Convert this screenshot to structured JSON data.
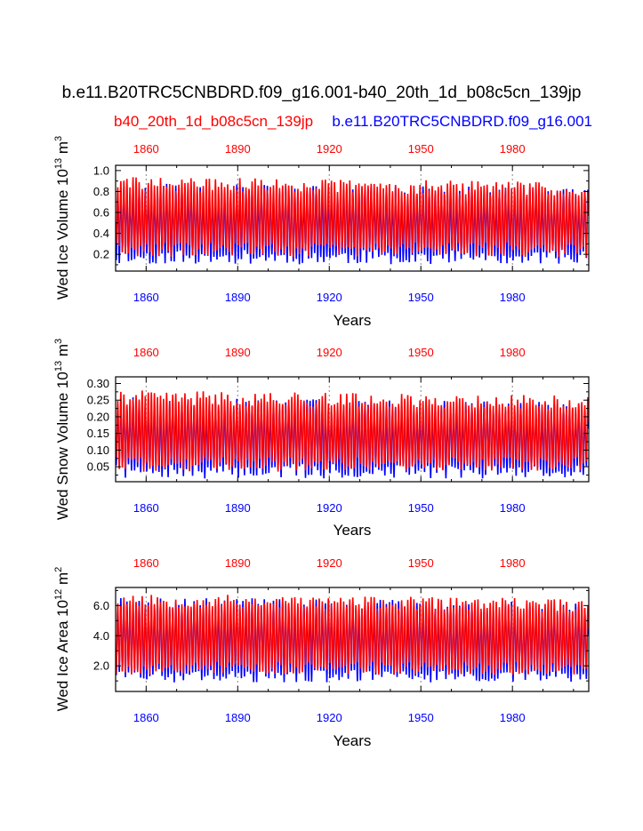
{
  "title": "b.e11.B20TRC5CNBDRD.f09_g16.001-b40_20th_1d_b08c5cn_139jp",
  "legend": {
    "red_case": "b40_20th_1d_b08c5cn_139jp",
    "blue_case": "b.e11.B20TRC5CNBDRD.f09_g16.001"
  },
  "colors": {
    "red": "#ff0000",
    "blue": "#0000ff",
    "grid": "#888888",
    "axis": "#000000"
  },
  "chart_data": [
    {
      "type": "line",
      "ylabel": "Wed Ice Volume 10",
      "ylabel_exp": "13",
      "ylabel_unit": " m",
      "ylabel_unit_exp": "3",
      "xlabel": "Years",
      "xlim": [
        1850,
        2005
      ],
      "ylim": [
        0.04,
        1.05
      ],
      "yticks": [
        0.2,
        0.4,
        0.6,
        0.8,
        1.0
      ],
      "ytick_labels": [
        "0.2",
        "0.4",
        "0.6",
        "0.8",
        "1.0"
      ],
      "ytick_minor": [
        0.1,
        0.3,
        0.5,
        0.7,
        0.9
      ],
      "xticks": [
        1860,
        1890,
        1920,
        1950,
        1980
      ],
      "xtick_labels": [
        "1860",
        "1890",
        "1920",
        "1950",
        "1980"
      ],
      "series": [
        {
          "name": "b.e11.B20TRC5CNBDRD.f09_g16.001",
          "color": "blue",
          "min_mean": 0.17,
          "max_mean": 0.82,
          "spread": 0.07,
          "seed": 11
        },
        {
          "name": "b40_20th_1d_b08c5cn_139jp",
          "color": "red",
          "min_mean": 0.24,
          "max_mean": 0.88,
          "spread": 0.07,
          "seed": 29
        }
      ]
    },
    {
      "type": "line",
      "ylabel": "Wed Snow Volume 10",
      "ylabel_exp": "13",
      "ylabel_unit": " m",
      "ylabel_unit_exp": "3",
      "xlabel": "Years",
      "xlim": [
        1850,
        2005
      ],
      "ylim": [
        0.005,
        0.32
      ],
      "yticks": [
        0.05,
        0.1,
        0.15,
        0.2,
        0.25,
        0.3
      ],
      "ytick_labels": [
        "0.05",
        "0.10",
        "0.15",
        "0.20",
        "0.25",
        "0.30"
      ],
      "ytick_minor": [
        0.025,
        0.075,
        0.125,
        0.175,
        0.225,
        0.275
      ],
      "xticks": [
        1860,
        1890,
        1920,
        1950,
        1980
      ],
      "xtick_labels": [
        "1860",
        "1890",
        "1920",
        "1950",
        "1980"
      ],
      "series": [
        {
          "name": "b.e11.B20TRC5CNBDRD.f09_g16.001",
          "color": "blue",
          "min_mean": 0.035,
          "max_mean": 0.24,
          "spread": 0.022,
          "seed": 7
        },
        {
          "name": "b40_20th_1d_b08c5cn_139jp",
          "color": "red",
          "min_mean": 0.055,
          "max_mean": 0.26,
          "spread": 0.022,
          "seed": 41
        }
      ]
    },
    {
      "type": "line",
      "ylabel": "Wed Ice Area 10",
      "ylabel_exp": "12",
      "ylabel_unit": " m",
      "ylabel_unit_exp": "2",
      "xlabel": "Years",
      "xlim": [
        1850,
        2005
      ],
      "ylim": [
        0.3,
        7.2
      ],
      "yticks": [
        2.0,
        4.0,
        6.0
      ],
      "ytick_labels": [
        "2.0",
        "4.0",
        "6.0"
      ],
      "ytick_minor": [
        1.0,
        3.0,
        5.0,
        7.0
      ],
      "xticks": [
        1860,
        1890,
        1920,
        1950,
        1980
      ],
      "xtick_labels": [
        "1860",
        "1890",
        "1920",
        "1950",
        "1980"
      ],
      "series": [
        {
          "name": "b.e11.B20TRC5CNBDRD.f09_g16.001",
          "color": "blue",
          "min_mean": 1.3,
          "max_mean": 6.2,
          "spread": 0.45,
          "seed": 3
        },
        {
          "name": "b40_20th_1d_b08c5cn_139jp",
          "color": "red",
          "min_mean": 1.8,
          "max_mean": 6.4,
          "spread": 0.45,
          "seed": 53
        }
      ]
    }
  ]
}
